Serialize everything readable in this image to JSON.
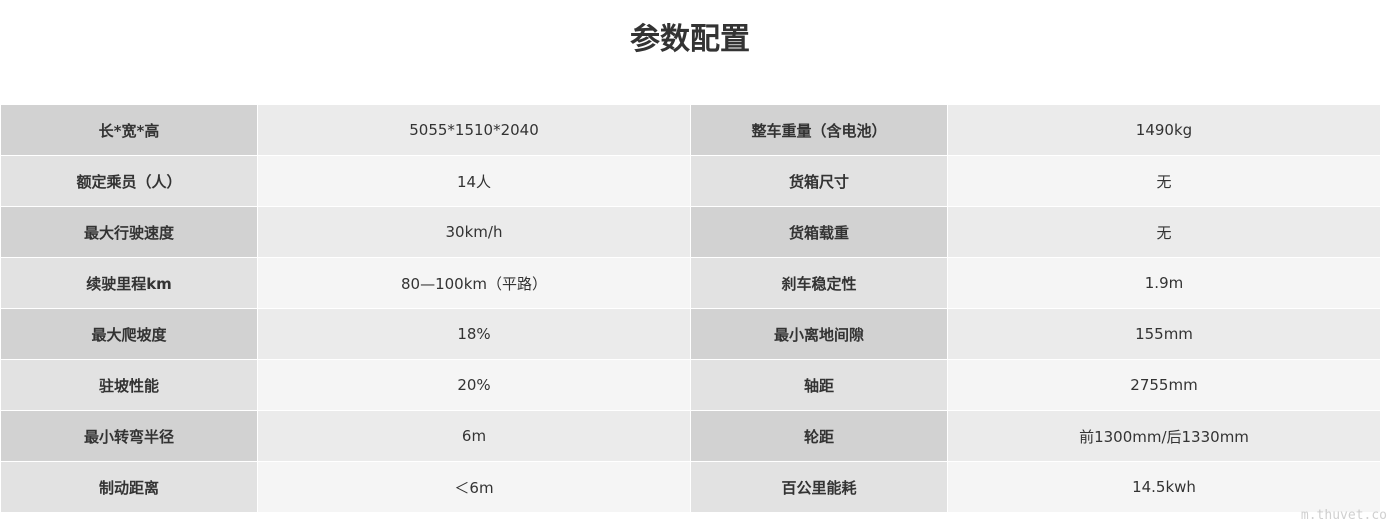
{
  "title": "参数配置",
  "table": {
    "rows": [
      [
        "长*宽*高",
        "5055*1510*2040",
        "整车重量（含电池）",
        "1490kg"
      ],
      [
        "额定乘员（人）",
        "14人",
        "货箱尺寸",
        "无"
      ],
      [
        "最大行驶速度",
        "30km/h",
        "货箱载重",
        "无"
      ],
      [
        "续驶里程km",
        "80—100km（平路）",
        "刹车稳定性",
        "1.9m"
      ],
      [
        "最大爬坡度",
        "18%",
        "最小离地间隙",
        "155mm"
      ],
      [
        "驻坡性能",
        "20%",
        "轴距",
        "2755mm"
      ],
      [
        "最小转弯半径",
        "6m",
        "轮距",
        "前1300mm/后1330mm"
      ],
      [
        "制动距离",
        "＜6m",
        "百公里能耗",
        "14.5kwh"
      ]
    ]
  },
  "watermark": "m.thuvet.co"
}
